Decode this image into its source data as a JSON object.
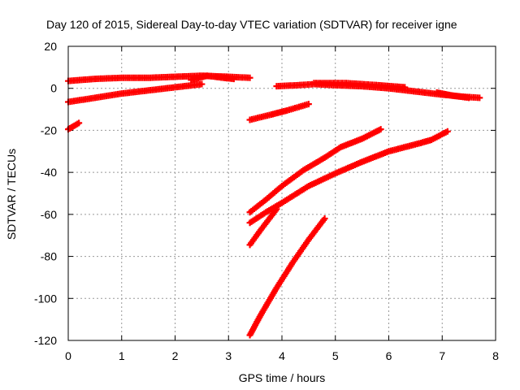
{
  "chart_data": {
    "type": "scatter",
    "title": "Day 120 of 2015, Sidereal Day-to-day VTEC variation (SDTVAR) for receiver igne",
    "xlabel": "GPS time / hours",
    "ylabel": "SDTVAR / TECUs",
    "xlim": [
      0,
      8
    ],
    "ylim": [
      -120,
      20
    ],
    "xticks": [
      "0",
      "1",
      "2",
      "3",
      "4",
      "5",
      "6",
      "7",
      "8"
    ],
    "yticks": [
      "20",
      "0",
      "-20",
      "-40",
      "-60",
      "-80",
      "-100",
      "-120"
    ],
    "grid": true,
    "marker_color": "#ff0000",
    "series": [
      {
        "points": [
          [
            0.0,
            3.5
          ],
          [
            0.5,
            4.5
          ],
          [
            1.0,
            5.0
          ],
          [
            1.5,
            5.0
          ],
          [
            2.0,
            5.5
          ],
          [
            2.5,
            6.0
          ],
          [
            3.0,
            5.5
          ],
          [
            3.4,
            5.0
          ]
        ]
      },
      {
        "points": [
          [
            0.0,
            -6.5
          ],
          [
            0.5,
            -4.5
          ],
          [
            1.0,
            -2.5
          ],
          [
            1.5,
            -1.0
          ],
          [
            2.0,
            0.5
          ],
          [
            2.5,
            2.0
          ]
        ]
      },
      {
        "points": [
          [
            2.3,
            4.0
          ],
          [
            2.6,
            6.0
          ],
          [
            2.9,
            5.0
          ],
          [
            3.1,
            4.5
          ]
        ]
      },
      {
        "points": [
          [
            0.0,
            -19.5
          ],
          [
            0.2,
            -16.5
          ]
        ]
      },
      {
        "points": [
          [
            3.4,
            -15.0
          ],
          [
            3.8,
            -12.5
          ],
          [
            4.1,
            -10.5
          ],
          [
            4.5,
            -7.5
          ]
        ]
      },
      {
        "points": [
          [
            3.9,
            1.0
          ],
          [
            4.3,
            1.5
          ],
          [
            4.6,
            2.0
          ],
          [
            5.0,
            1.5
          ],
          [
            5.5,
            1.0
          ],
          [
            6.0,
            0.0
          ],
          [
            6.5,
            -1.5
          ],
          [
            7.0,
            -3.0
          ],
          [
            7.4,
            -4.0
          ],
          [
            7.7,
            -4.5
          ]
        ]
      },
      {
        "points": [
          [
            4.6,
            2.5
          ],
          [
            5.2,
            2.5
          ],
          [
            5.8,
            1.5
          ],
          [
            6.3,
            0.5
          ]
        ]
      },
      {
        "points": [
          [
            6.9,
            -2.0
          ],
          [
            7.2,
            -3.5
          ],
          [
            7.5,
            -4.5
          ]
        ]
      },
      {
        "points": [
          [
            3.4,
            -59.0
          ],
          [
            3.7,
            -53.0
          ],
          [
            4.0,
            -46.5
          ],
          [
            4.4,
            -39.0
          ],
          [
            4.8,
            -33.0
          ],
          [
            5.1,
            -28.0
          ],
          [
            5.5,
            -24.0
          ],
          [
            5.85,
            -19.5
          ]
        ]
      },
      {
        "points": [
          [
            3.4,
            -64.0
          ],
          [
            3.7,
            -59.0
          ],
          [
            4.0,
            -54.5
          ],
          [
            4.5,
            -46.5
          ],
          [
            5.0,
            -40.5
          ],
          [
            5.5,
            -35.0
          ],
          [
            6.0,
            -30.0
          ],
          [
            6.6,
            -26.0
          ],
          [
            6.8,
            -24.5
          ],
          [
            7.1,
            -20.5
          ]
        ]
      },
      {
        "points": [
          [
            3.4,
            -74.5
          ],
          [
            3.6,
            -67.5
          ],
          [
            3.9,
            -57.5
          ]
        ]
      },
      {
        "points": [
          [
            3.4,
            -117.5
          ],
          [
            3.6,
            -108.0
          ],
          [
            3.9,
            -95.0
          ],
          [
            4.2,
            -83.0
          ],
          [
            4.5,
            -72.0
          ],
          [
            4.8,
            -62.0
          ]
        ]
      }
    ]
  }
}
